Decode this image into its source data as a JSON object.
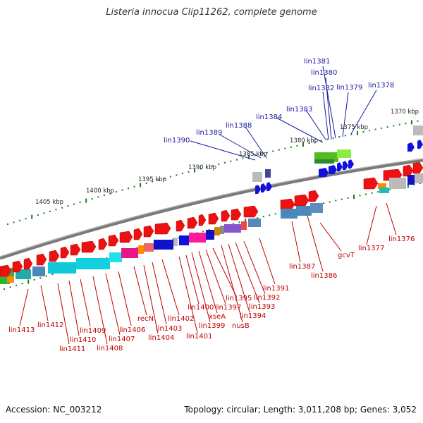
{
  "title": "Listeria innocua Clip11262, complete genome",
  "footer": {
    "accession": "Accession: NC_003212",
    "topology": "Topology: circular; Length: 3,011,208 bp; Genes: 3,052"
  },
  "scale_labels": [
    "1405 kbp",
    "1400 kbp",
    "1395 kbp",
    "1390 kbp",
    "1385 kbp",
    "1380 kbp",
    "1375 kbp",
    "1370 kbp"
  ],
  "top_gene_labels": [
    "lin1390",
    "lin1389",
    "lin1388",
    "lin1384",
    "lin1383",
    "lin1382",
    "lin1380",
    "lin1381",
    "lin1379",
    "lin1378"
  ],
  "bottom_gene_labels": [
    "lin1413",
    "lin1412",
    "lin1411",
    "lin1410",
    "lin1409",
    "lin1408",
    "lin1407",
    "lin1406",
    "recN",
    "lin1404",
    "lin1403",
    "lin1402",
    "lin1401",
    "lin1400",
    "lin1399",
    "xseA",
    "lin1397",
    "lin1395",
    "nusB",
    "lin1394",
    "lin1393",
    "lin1392",
    "lin1391",
    "lin1387",
    "lin1386",
    "gcvT",
    "lin1377",
    "lin1376"
  ],
  "colors": {
    "backbone": "#808080",
    "tick": "#1a7a1a",
    "forward_gene": "#ee1111",
    "reverse_gene": "#1111dd",
    "blue_label": "#1a1aa0",
    "red_label": "#c00000"
  }
}
